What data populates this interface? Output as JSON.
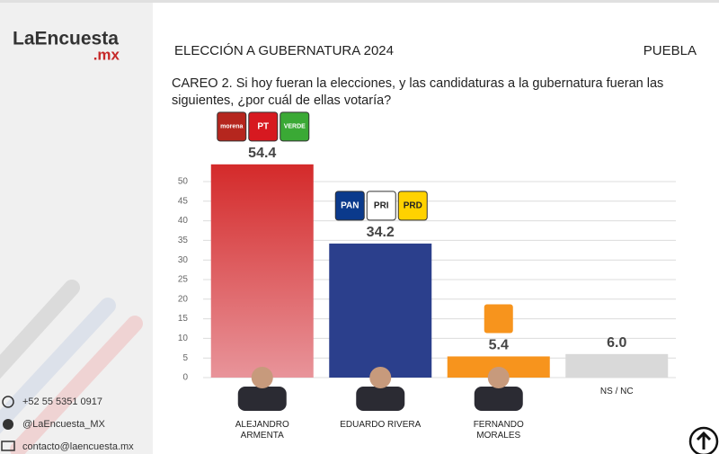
{
  "sidebar": {
    "logo": "LaEncuesta",
    "logo_suffix": ".mx",
    "phone": "+52 55 5351 0917",
    "twitter": "@LaEncuesta_MX",
    "email": "contacto@laencuesta.mx"
  },
  "chart_data": {
    "type": "bar",
    "title": "ELECCIÓN A GUBERNATURA 2024",
    "region": "PUEBLA",
    "subtitle": "CAREO 2. Si hoy fueran la elecciones, y las candidaturas a la gubernatura fueran las siguientes, ¿por cuál de ellas votaría?",
    "categories": [
      "ALEJANDRO ARMENTA",
      "EDUARDO RIVERA",
      "FERNANDO MORALES",
      "NS / NC"
    ],
    "values": [
      54.4,
      34.2,
      5.4,
      6.0
    ],
    "value_labels": [
      "54.4",
      "34.2",
      "5.4",
      "6.0"
    ],
    "colors": [
      "#d42a2a",
      "#2b3f8c",
      "#f7941d",
      "#d9d9d9"
    ],
    "party_logos": [
      [
        "morena",
        "PT",
        "VERDE"
      ],
      [
        "PAN",
        "PRI",
        "PRD"
      ]
    ],
    "ylim": [
      0,
      55
    ],
    "yticks": [
      0,
      5,
      10,
      15,
      20,
      25,
      30,
      35,
      40,
      45,
      50
    ],
    "grid": true
  }
}
